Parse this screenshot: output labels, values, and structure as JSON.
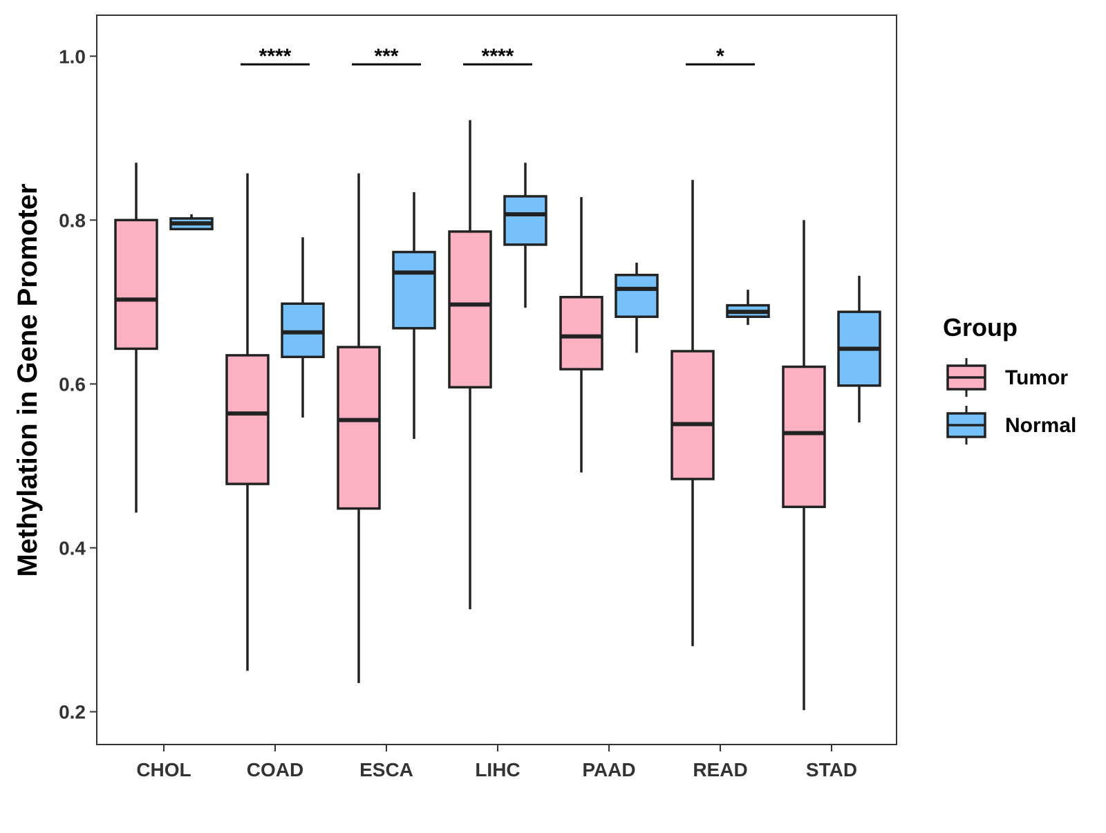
{
  "chart_data": {
    "type": "boxplot",
    "title": "",
    "xlabel": "",
    "ylabel": "Methylation in Gene Promoter",
    "ylim": [
      0.16,
      1.05
    ],
    "yticks": [
      0.2,
      0.4,
      0.6,
      0.8,
      1.0
    ],
    "ytick_labels": [
      "0.2",
      "0.4",
      "0.6",
      "0.8",
      "1.0"
    ],
    "grid": false,
    "categories": [
      "CHOL",
      "COAD",
      "ESCA",
      "LIHC",
      "PAAD",
      "READ",
      "STAD"
    ],
    "legend": {
      "title": "Group",
      "position": "right",
      "entries": [
        {
          "name": "Tumor",
          "color": "#FBB1C2"
        },
        {
          "name": "Normal",
          "color": "#76C1FA"
        }
      ]
    },
    "series": [
      {
        "name": "Tumor",
        "color": "#FBB1C2",
        "boxes": [
          {
            "category": "CHOL",
            "whisker_low": 0.443,
            "q1": 0.643,
            "median": 0.703,
            "q3": 0.8,
            "whisker_high": 0.87
          },
          {
            "category": "COAD",
            "whisker_low": 0.25,
            "q1": 0.478,
            "median": 0.564,
            "q3": 0.635,
            "whisker_high": 0.857
          },
          {
            "category": "ESCA",
            "whisker_low": 0.235,
            "q1": 0.448,
            "median": 0.556,
            "q3": 0.645,
            "whisker_high": 0.857
          },
          {
            "category": "LIHC",
            "whisker_low": 0.325,
            "q1": 0.596,
            "median": 0.697,
            "q3": 0.786,
            "whisker_high": 0.922
          },
          {
            "category": "PAAD",
            "whisker_low": 0.492,
            "q1": 0.618,
            "median": 0.658,
            "q3": 0.706,
            "whisker_high": 0.828
          },
          {
            "category": "READ",
            "whisker_low": 0.28,
            "q1": 0.484,
            "median": 0.551,
            "q3": 0.64,
            "whisker_high": 0.849
          },
          {
            "category": "STAD",
            "whisker_low": 0.202,
            "q1": 0.45,
            "median": 0.54,
            "q3": 0.621,
            "whisker_high": 0.8
          }
        ]
      },
      {
        "name": "Normal",
        "color": "#76C1FA",
        "boxes": [
          {
            "category": "CHOL",
            "whisker_low": 0.789,
            "q1": 0.789,
            "median": 0.796,
            "q3": 0.802,
            "whisker_high": 0.807
          },
          {
            "category": "COAD",
            "whisker_low": 0.559,
            "q1": 0.633,
            "median": 0.663,
            "q3": 0.698,
            "whisker_high": 0.779
          },
          {
            "category": "ESCA",
            "whisker_low": 0.533,
            "q1": 0.668,
            "median": 0.736,
            "q3": 0.761,
            "whisker_high": 0.834
          },
          {
            "category": "LIHC",
            "whisker_low": 0.693,
            "q1": 0.77,
            "median": 0.807,
            "q3": 0.829,
            "whisker_high": 0.87
          },
          {
            "category": "PAAD",
            "whisker_low": 0.638,
            "q1": 0.682,
            "median": 0.716,
            "q3": 0.733,
            "whisker_high": 0.748
          },
          {
            "category": "READ",
            "whisker_low": 0.672,
            "q1": 0.682,
            "median": 0.688,
            "q3": 0.696,
            "whisker_high": 0.715
          },
          {
            "category": "STAD",
            "whisker_low": 0.553,
            "q1": 0.598,
            "median": 0.643,
            "q3": 0.688,
            "whisker_high": 0.732
          }
        ]
      }
    ],
    "annotations": [
      {
        "category": "COAD",
        "label": "****",
        "y": 0.99
      },
      {
        "category": "ESCA",
        "label": "***",
        "y": 0.99
      },
      {
        "category": "LIHC",
        "label": "****",
        "y": 0.99
      },
      {
        "category": "READ",
        "label": "*",
        "y": 0.99
      }
    ]
  }
}
